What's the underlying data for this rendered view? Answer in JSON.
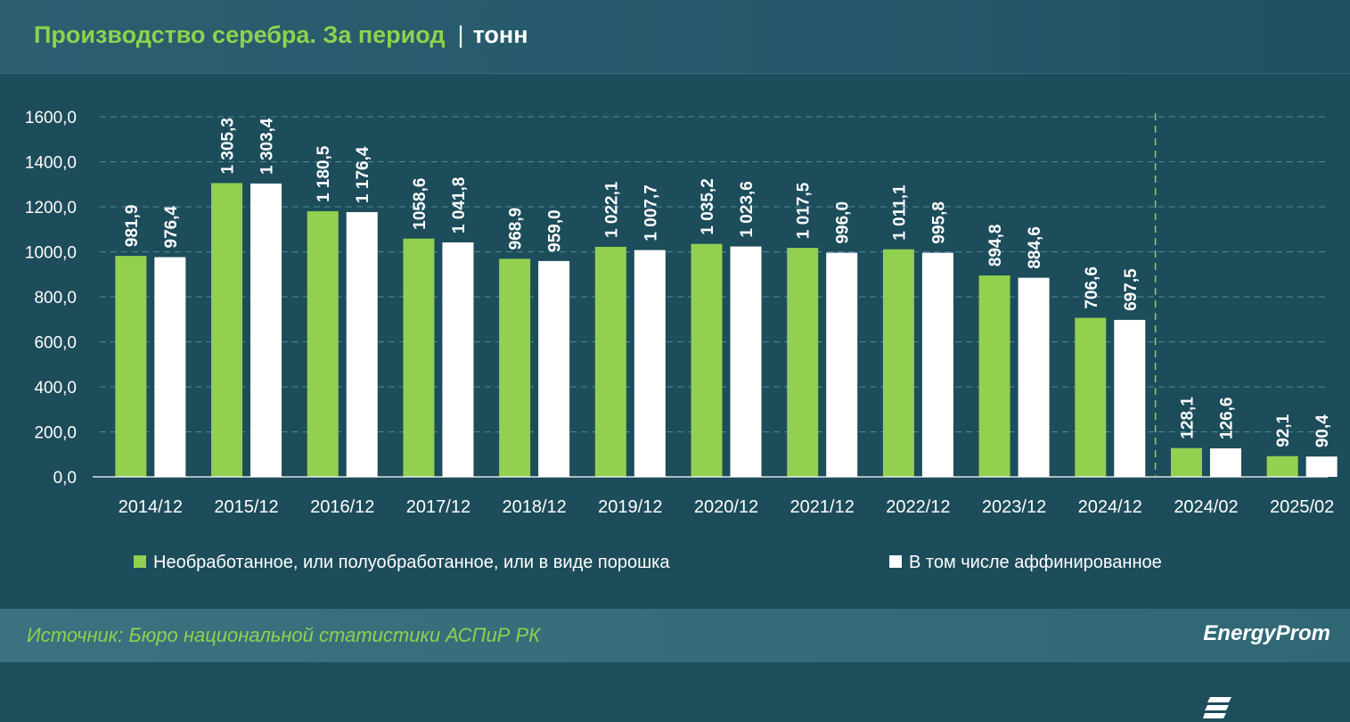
{
  "header": {
    "title": "Производство серебра. За период",
    "separator": "|",
    "unit": "тонн"
  },
  "footer": {
    "source": "Источник: Бюро национальной статистики АСПиР РК",
    "logo_text": "EnergyProm"
  },
  "colors": {
    "series_green": "#92d050",
    "series_white": "#ffffff",
    "background": "#1d4c5b",
    "grid": "#4d8a9a",
    "title_green": "#8fd14f"
  },
  "chart_data": {
    "type": "bar",
    "categories": [
      "2014/12",
      "2015/12",
      "2016/12",
      "2017/12",
      "2018/12",
      "2019/12",
      "2020/12",
      "2021/12",
      "2022/12",
      "2023/12",
      "2024/12",
      "2024/02",
      "2025/02"
    ],
    "series": [
      {
        "name": "Необработанное, или полуобработанное, или в виде порошка",
        "color": "#92d050",
        "values": [
          981.9,
          1305.3,
          1180.5,
          1058.6,
          968.9,
          1022.1,
          1035.2,
          1017.5,
          1011.1,
          894.8,
          706.6,
          128.1,
          92.1
        ],
        "labels": [
          "981,9",
          "1 305,3",
          "1 180,5",
          "1058,6",
          "968,9",
          "1 022,1",
          "1 035,2",
          "1 017,5",
          "1 011,1",
          "894,8",
          "706,6",
          "128,1",
          "92,1"
        ]
      },
      {
        "name": "В том числе аффинированное",
        "color": "#ffffff",
        "values": [
          976.4,
          1303.4,
          1176.4,
          1041.8,
          959.0,
          1007.7,
          1023.6,
          996.0,
          995.8,
          884.6,
          697.5,
          126.6,
          90.4
        ],
        "labels": [
          "976,4",
          "1 303,4",
          "1 176,4",
          "1 041,8",
          "959,0",
          "1 007,7",
          "1 023,6",
          "996,0",
          "995,8",
          "884,6",
          "697,5",
          "126,6",
          "90,4"
        ]
      }
    ],
    "ylim": [
      0,
      1600
    ],
    "yticks": [
      0,
      200,
      400,
      600,
      800,
      1000,
      1200,
      1400,
      1600
    ],
    "ytick_labels": [
      "0,0",
      "200,0",
      "400,0",
      "600,0",
      "800,0",
      "1000,0",
      "1200,0",
      "1400,0",
      "1600,0"
    ],
    "grid": true,
    "legend_position": "bottom",
    "separator_after_index": 10
  }
}
